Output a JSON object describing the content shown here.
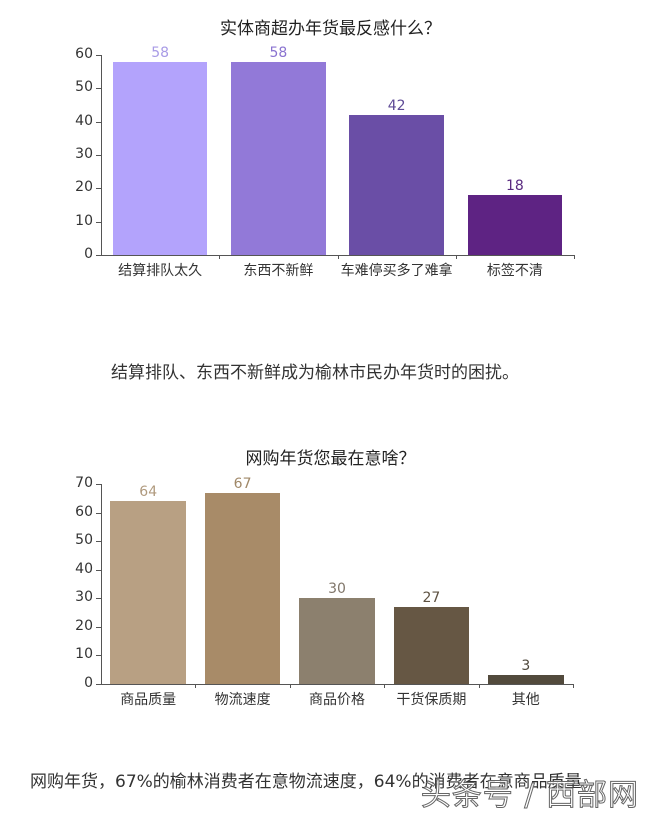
{
  "chart_data": [
    {
      "type": "bar",
      "title": "实体商超办年货最反感什么？",
      "categories": [
        "结算排队太久",
        "东西不新鲜",
        "车难停买多了难拿",
        "标签不清"
      ],
      "values": [
        58,
        58,
        42,
        18
      ],
      "colors": [
        "#b3a3fc",
        "#9279d8",
        "#6a4ea6",
        "#5e2383"
      ],
      "label_colors": [
        "#a89be6",
        "#8a73d0",
        "#5e4a96",
        "#5a2a80"
      ],
      "xlabel": "",
      "ylabel": "",
      "ylim": [
        0,
        60
      ],
      "yticks": [
        0,
        10,
        20,
        30,
        40,
        50,
        60
      ],
      "grid": false,
      "legend": "none"
    },
    {
      "type": "bar",
      "title": "网购年货您最在意啥？",
      "categories": [
        "商品质量",
        "物流速度",
        "商品价格",
        "干货保质期",
        "其他"
      ],
      "values": [
        64,
        67,
        30,
        27,
        3
      ],
      "colors": [
        "#b8a083",
        "#a88b68",
        "#8c806e",
        "#665744",
        "#524a3c"
      ],
      "label_colors": [
        "#b09a7e",
        "#a08868",
        "#80766a",
        "#5e5242",
        "#4e483c"
      ],
      "xlabel": "",
      "ylabel": "",
      "ylim": [
        0,
        70
      ],
      "yticks": [
        0,
        10,
        20,
        30,
        40,
        50,
        60,
        70
      ],
      "grid": false,
      "legend": "none"
    }
  ],
  "captions": {
    "chart1": "结算排队、东西不新鲜成为榆林市民办年货时的困扰。",
    "chart2": "网购年货，67%的榆林消费者在意物流速度，64%的消费者在意商品质量。"
  },
  "watermark": "头条号 / 西部网"
}
